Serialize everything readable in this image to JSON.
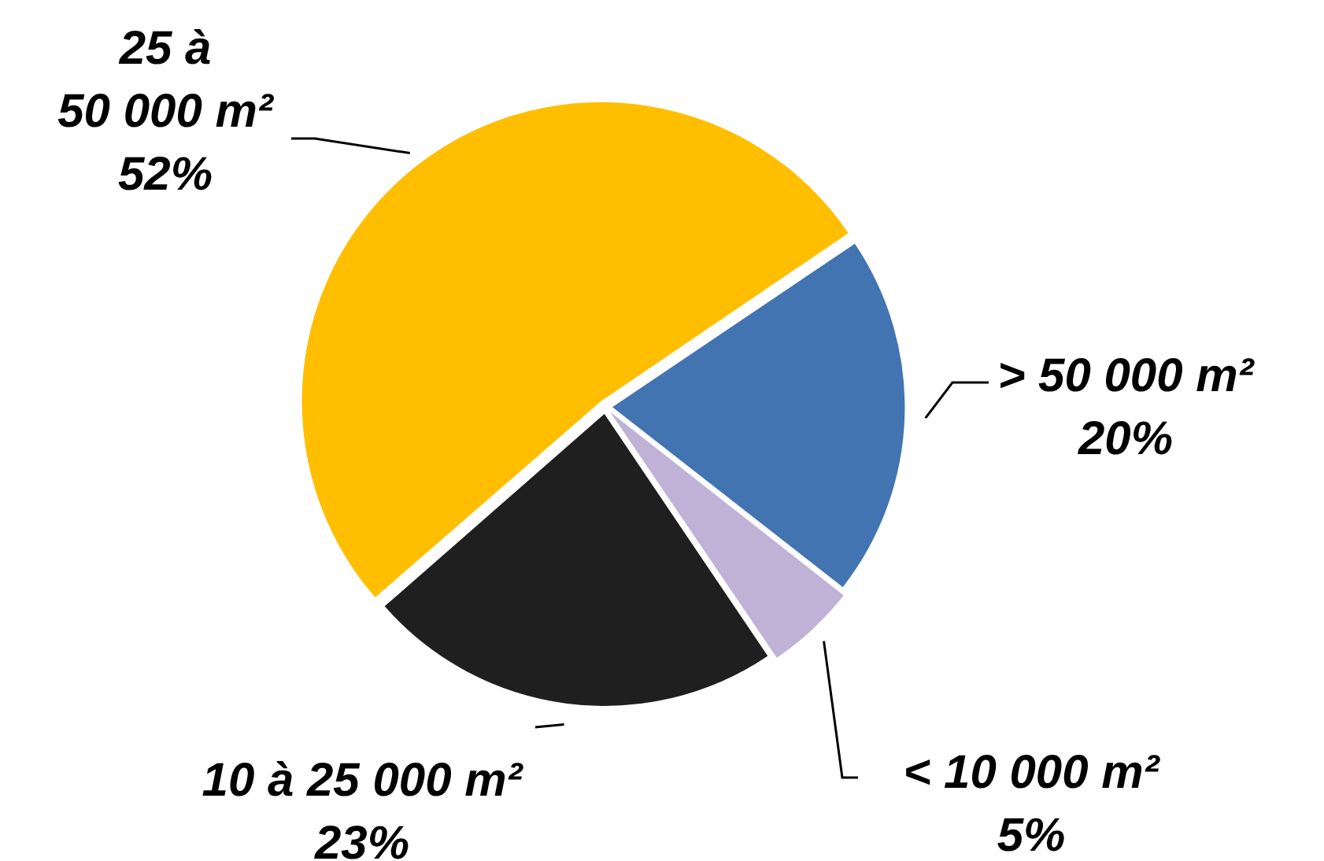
{
  "chart_data": {
    "type": "pie",
    "categories": [
      "> 50 000 m²",
      "< 10 000 m²",
      "10 à 25 000 m²",
      "25 à\n50 000 m²"
    ],
    "values": [
      20,
      5,
      23,
      52
    ],
    "colors": [
      "#4174b0",
      "#bfb2d6",
      "#1f1f1f",
      "#ffbf00"
    ],
    "value_labels": [
      "20%",
      "5%",
      "23%",
      "52%"
    ],
    "legend": false
  }
}
